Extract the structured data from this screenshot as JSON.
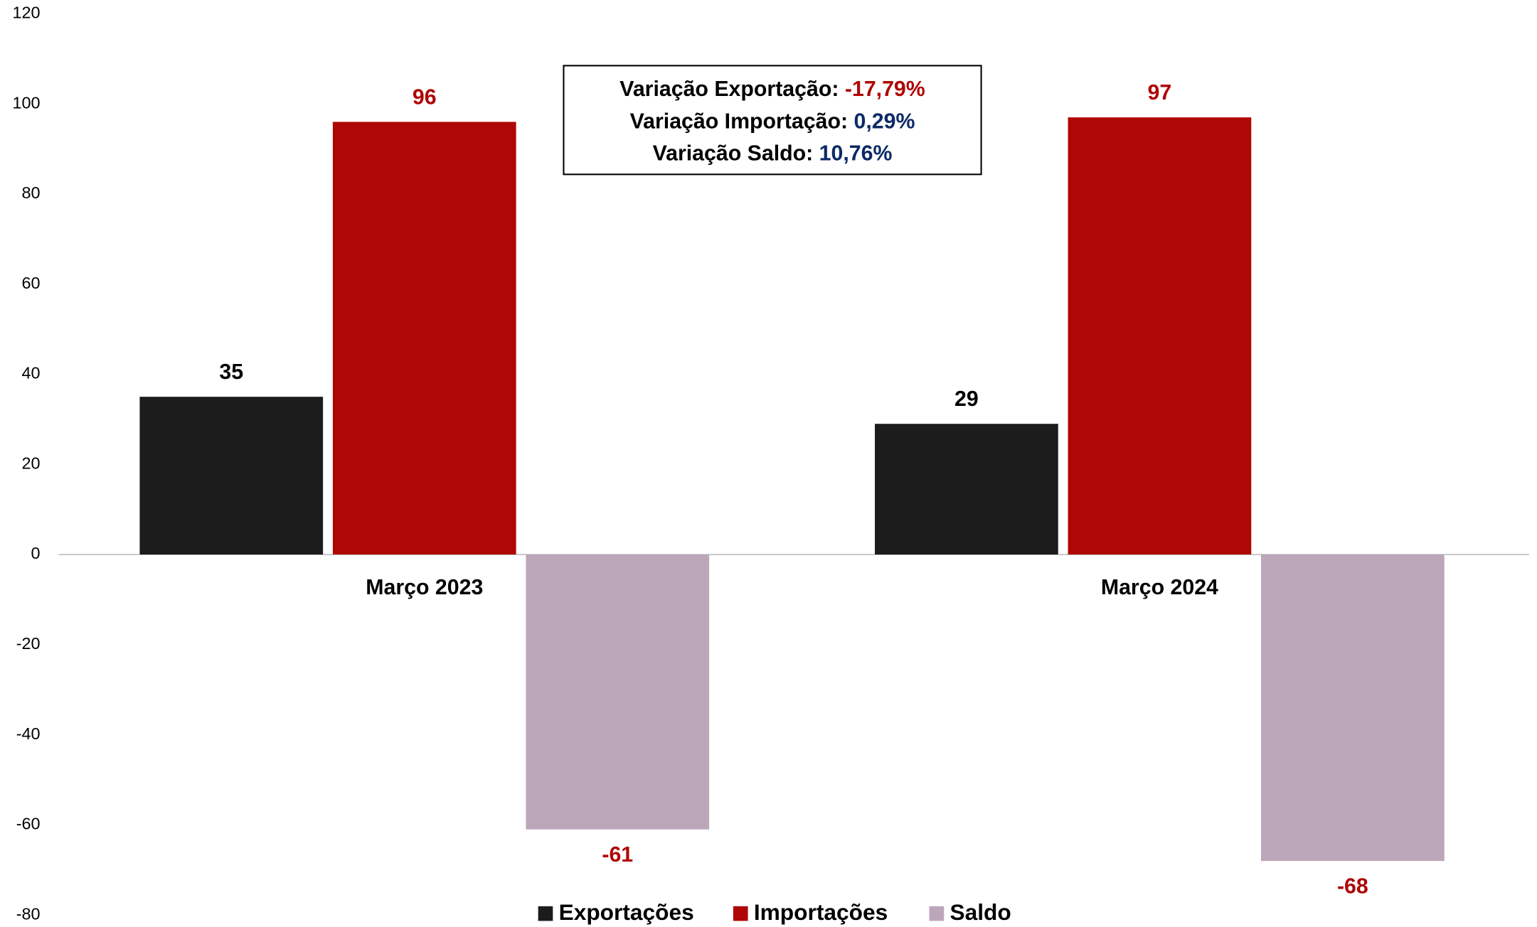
{
  "chart_data": {
    "type": "bar",
    "categories": [
      "Março 2023",
      "Março 2024"
    ],
    "series": [
      {
        "name": "Exportações",
        "color": "#1c1c1c",
        "label_color": "#000000",
        "values": [
          35,
          29
        ]
      },
      {
        "name": "Importações",
        "color": "#af0606",
        "label_color": "#af0606",
        "values": [
          96,
          97
        ]
      },
      {
        "name": "Saldo",
        "color": "#bca6b9",
        "label_color": "#af0606",
        "values": [
          -61,
          -68
        ]
      }
    ],
    "ylim": [
      -80,
      120
    ],
    "yticks": [
      -80,
      -60,
      -40,
      -20,
      0,
      20,
      40,
      60,
      80,
      100,
      120
    ],
    "grid": false,
    "legend": "bottom",
    "annotations": [
      {
        "label": "Variação Exportação:",
        "value": "-17,79%",
        "color": "#af0606"
      },
      {
        "label": "Variação Importação:",
        "value": "0,29%",
        "color": "#0c2a66"
      },
      {
        "label": "Variação Saldo:",
        "value": "10,76%",
        "color": "#0c2a66"
      }
    ]
  }
}
